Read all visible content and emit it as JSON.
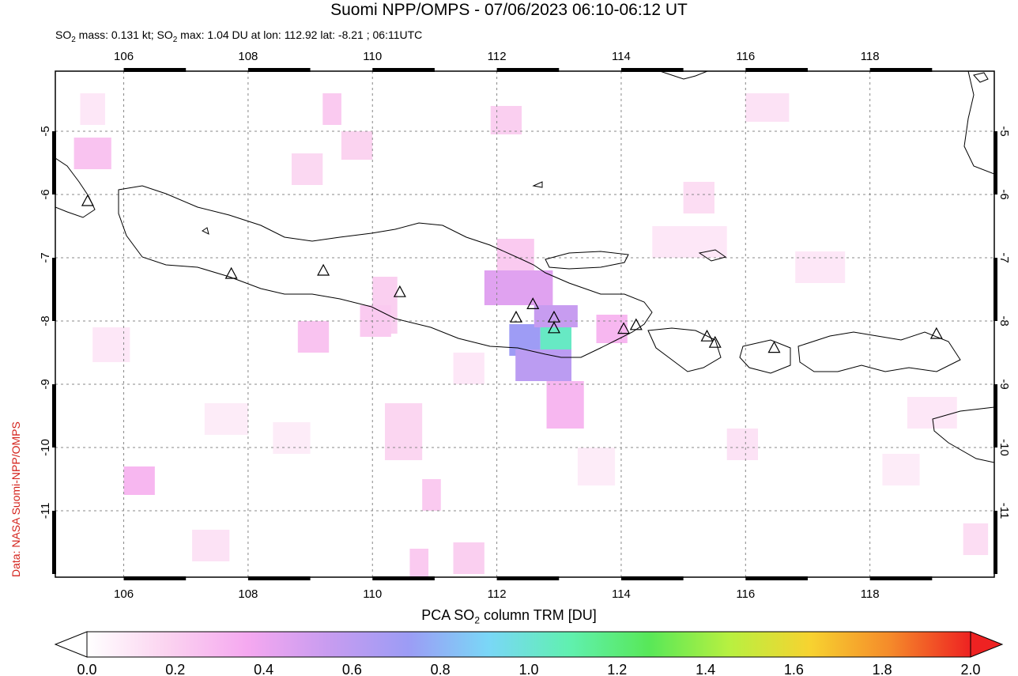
{
  "title": "Suomi NPP/OMPS - 07/06/2023 06:10-06:12 UT",
  "subtitle": {
    "prefix": "SO",
    "sub": "2",
    "mid": " mass: 0.131 kt; SO",
    "sub2": "2",
    "rest": " max: 1.04 DU at lon: 112.92 lat: -8.21 ; 06:11UTC"
  },
  "credit": "Data: NASA Suomi-NPP/OMPS",
  "colorbar": {
    "title_prefix": "PCA SO",
    "title_sub": "2",
    "title_rest": " column TRM [DU]",
    "ticks": [
      "0.0",
      "0.2",
      "0.4",
      "0.6",
      "0.8",
      "1.0",
      "1.2",
      "1.4",
      "1.6",
      "1.8",
      "2.0"
    ],
    "colors": [
      "#ffffff",
      "#fbd3f0",
      "#f5a8f0",
      "#c89cf0",
      "#9c9cf5",
      "#7ad7f7",
      "#60f0b0",
      "#58e858",
      "#b8f040",
      "#f7d330",
      "#f58a2a",
      "#ee2222"
    ]
  },
  "map": {
    "lon_ticks": [
      "106",
      "108",
      "110",
      "112",
      "114",
      "116",
      "118"
    ],
    "lat_ticks": [
      "-5",
      "-6",
      "-7",
      "-8",
      "-9",
      "-10",
      "-11"
    ],
    "lon_range": [
      104.9,
      120
    ],
    "lat_range": [
      -12.05,
      -4.05
    ],
    "volcanoes": [
      [
        105.42,
        -6.1
      ],
      [
        107.73,
        -7.25
      ],
      [
        109.21,
        -7.2
      ],
      [
        110.44,
        -7.54
      ],
      [
        112.31,
        -7.94
      ],
      [
        112.58,
        -7.73
      ],
      [
        112.92,
        -7.94
      ],
      [
        112.92,
        -8.11
      ],
      [
        114.04,
        -8.12
      ],
      [
        114.24,
        -8.06
      ],
      [
        115.38,
        -8.24
      ],
      [
        115.51,
        -8.34
      ],
      [
        116.46,
        -8.42
      ],
      [
        119.07,
        -8.2
      ]
    ],
    "so2_cells": [
      {
        "lon": 112.2,
        "lat": -8.05,
        "w": 0.5,
        "h": 0.5,
        "v": 0.72
      },
      {
        "lon": 112.7,
        "lat": -8.05,
        "w": 0.5,
        "h": 0.4,
        "v": 1.04
      },
      {
        "lon": 112.3,
        "lat": -8.45,
        "w": 0.9,
        "h": 0.5,
        "v": 0.6
      },
      {
        "lon": 111.8,
        "lat": -7.2,
        "w": 1.1,
        "h": 0.55,
        "v": 0.45
      },
      {
        "lon": 112.6,
        "lat": -7.75,
        "w": 0.7,
        "h": 0.35,
        "v": 0.55
      },
      {
        "lon": 112.8,
        "lat": -8.95,
        "w": 0.6,
        "h": 0.75,
        "v": 0.3
      },
      {
        "lon": 113.6,
        "lat": -7.9,
        "w": 0.5,
        "h": 0.45,
        "v": 0.3
      },
      {
        "lon": 112.0,
        "lat": -6.7,
        "w": 0.6,
        "h": 0.5,
        "v": 0.22
      },
      {
        "lon": 110.0,
        "lat": -7.3,
        "w": 0.4,
        "h": 0.9,
        "v": 0.2
      },
      {
        "lon": 109.8,
        "lat": -7.75,
        "w": 0.5,
        "h": 0.5,
        "v": 0.22
      },
      {
        "lon": 108.8,
        "lat": -8.0,
        "w": 0.5,
        "h": 0.5,
        "v": 0.25
      },
      {
        "lon": 106.0,
        "lat": -10.3,
        "w": 0.5,
        "h": 0.45,
        "v": 0.3
      },
      {
        "lon": 105.2,
        "lat": -5.1,
        "w": 0.6,
        "h": 0.5,
        "v": 0.25
      },
      {
        "lon": 109.2,
        "lat": -4.4,
        "w": 0.3,
        "h": 0.5,
        "v": 0.22
      },
      {
        "lon": 111.9,
        "lat": -4.6,
        "w": 0.5,
        "h": 0.45,
        "v": 0.2
      },
      {
        "lon": 109.5,
        "lat": -5.0,
        "w": 0.5,
        "h": 0.45,
        "v": 0.18
      },
      {
        "lon": 108.7,
        "lat": -5.35,
        "w": 0.5,
        "h": 0.5,
        "v": 0.16
      },
      {
        "lon": 115.0,
        "lat": -5.8,
        "w": 0.5,
        "h": 0.5,
        "v": 0.14
      },
      {
        "lon": 116.0,
        "lat": -4.4,
        "w": 0.7,
        "h": 0.45,
        "v": 0.12
      },
      {
        "lon": 110.2,
        "lat": -9.3,
        "w": 0.6,
        "h": 0.9,
        "v": 0.17
      },
      {
        "lon": 110.8,
        "lat": -10.5,
        "w": 0.3,
        "h": 0.5,
        "v": 0.22
      },
      {
        "lon": 111.3,
        "lat": -11.5,
        "w": 0.5,
        "h": 0.5,
        "v": 0.2
      },
      {
        "lon": 110.6,
        "lat": -11.6,
        "w": 0.3,
        "h": 0.45,
        "v": 0.22
      },
      {
        "lon": 107.1,
        "lat": -11.3,
        "w": 0.6,
        "h": 0.5,
        "v": 0.12
      },
      {
        "lon": 105.5,
        "lat": -8.1,
        "w": 0.6,
        "h": 0.55,
        "v": 0.1
      },
      {
        "lon": 114.5,
        "lat": -6.5,
        "w": 1.2,
        "h": 0.5,
        "v": 0.1
      },
      {
        "lon": 116.8,
        "lat": -6.9,
        "w": 0.8,
        "h": 0.5,
        "v": 0.1
      },
      {
        "lon": 115.7,
        "lat": -9.7,
        "w": 0.5,
        "h": 0.5,
        "v": 0.12
      },
      {
        "lon": 118.6,
        "lat": -9.2,
        "w": 0.8,
        "h": 0.5,
        "v": 0.1
      },
      {
        "lon": 119.5,
        "lat": -11.2,
        "w": 0.4,
        "h": 0.5,
        "v": 0.14
      },
      {
        "lon": 118.2,
        "lat": -10.1,
        "w": 0.6,
        "h": 0.5,
        "v": 0.08
      },
      {
        "lon": 113.3,
        "lat": -10.0,
        "w": 0.6,
        "h": 0.6,
        "v": 0.08
      },
      {
        "lon": 111.3,
        "lat": -8.5,
        "w": 0.5,
        "h": 0.5,
        "v": 0.1
      },
      {
        "lon": 105.3,
        "lat": -4.4,
        "w": 0.4,
        "h": 0.5,
        "v": 0.1
      },
      {
        "lon": 107.3,
        "lat": -9.3,
        "w": 0.7,
        "h": 0.5,
        "v": 0.08
      },
      {
        "lon": 108.4,
        "lat": -9.6,
        "w": 0.6,
        "h": 0.5,
        "v": 0.08
      }
    ]
  }
}
